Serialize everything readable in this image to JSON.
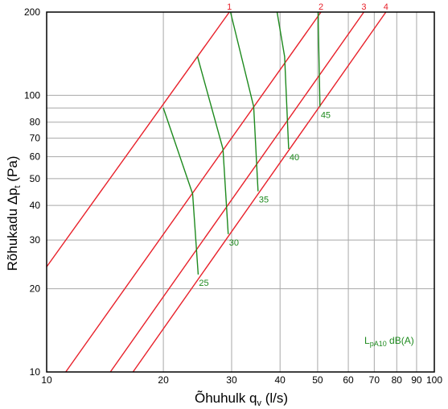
{
  "chart_data": {
    "type": "line",
    "xscale": "log",
    "yscale": "log",
    "xlim": [
      10,
      100
    ],
    "ylim": [
      10,
      200
    ],
    "x_ticks": [
      10,
      20,
      30,
      40,
      50,
      60,
      70,
      80,
      90,
      100
    ],
    "x_tick_labels": [
      "10",
      "20",
      "30",
      "40",
      "50",
      "60",
      "70",
      "80",
      "90",
      "100"
    ],
    "y_ticks": [
      10,
      20,
      30,
      40,
      50,
      60,
      70,
      80,
      90,
      100,
      200
    ],
    "y_tick_labels": [
      "10",
      "20",
      "30",
      "40",
      "50",
      "60",
      "70",
      "80",
      "",
      "100",
      "200"
    ],
    "grid": true,
    "xlabel": "Õhuhulk q",
    "xlabel_sub": "v",
    "xlabel_unit": " (l/s)",
    "ylabel": "Rõhukadu  Δp",
    "ylabel_sub": "t",
    "ylabel_unit": " (Pa)",
    "annotation": {
      "main": "L",
      "sub": "pA10",
      "rest": " dB(A)"
    },
    "colors": {
      "red": "#e8202a",
      "green": "#1e8a1e",
      "grid": "#a8a8a8",
      "axis": "#000000"
    },
    "red_series": [
      {
        "name": "1",
        "x": [
          10.0,
          29.6
        ],
        "y": [
          24,
          200
        ]
      },
      {
        "name": "2",
        "x": [
          11.2,
          51.0
        ],
        "y": [
          10,
          200
        ]
      },
      {
        "name": "3",
        "x": [
          14.6,
          65.8
        ],
        "y": [
          10,
          200
        ]
      },
      {
        "name": "4",
        "x": [
          16.7,
          75.0
        ],
        "y": [
          10,
          200
        ]
      }
    ],
    "green_series": [
      {
        "name": "25",
        "x": [
          20.0,
          23.8,
          24.6
        ],
        "y": [
          90,
          44,
          22.5
        ]
      },
      {
        "name": "30",
        "x": [
          24.5,
          28.5,
          29.4
        ],
        "y": [
          138,
          64,
          31.5
        ]
      },
      {
        "name": "35",
        "x": [
          29.8,
          34.2,
          35.1
        ],
        "y": [
          200,
          91,
          45
        ]
      },
      {
        "name": "40",
        "x": [
          39.3,
          41.1,
          42.1
        ],
        "y": [
          200,
          138,
          64
        ]
      },
      {
        "name": "45",
        "x": [
          50.2,
          50.2,
          50.7
        ],
        "y": [
          200,
          180,
          91
        ]
      }
    ]
  }
}
